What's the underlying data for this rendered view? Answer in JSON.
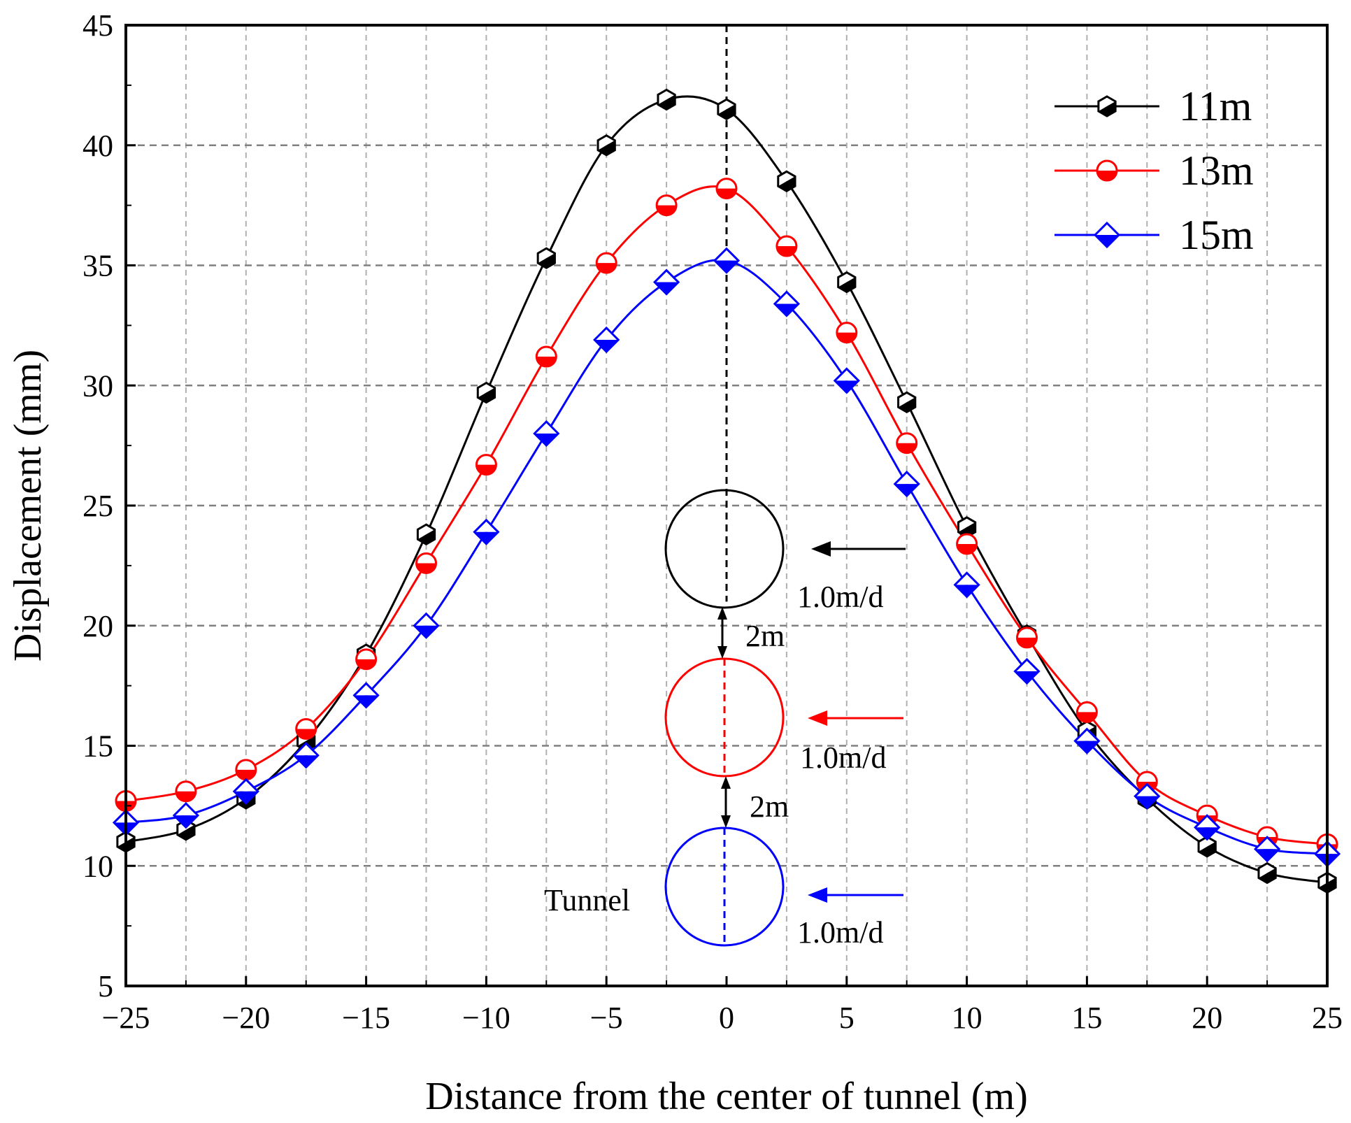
{
  "chart_data": {
    "type": "line",
    "title": "",
    "xlabel": "Distance from the center of tunnel (m)",
    "ylabel": "Displacement (mm)",
    "xlim": [
      -25,
      25
    ],
    "ylim": [
      5,
      45
    ],
    "xticks": [
      -25,
      -20,
      -15,
      -10,
      -5,
      0,
      5,
      10,
      15,
      20,
      25
    ],
    "xtick_labels": [
      "−25",
      "−20",
      "−15",
      "−10",
      "−5",
      "0",
      "5",
      "10",
      "15",
      "20",
      "25"
    ],
    "yticks": [
      5,
      10,
      15,
      20,
      25,
      30,
      35,
      40,
      45
    ],
    "ytick_labels": [
      "5",
      "10",
      "15",
      "20",
      "25",
      "30",
      "35",
      "40",
      "45"
    ],
    "grid": true,
    "legend_position": "top-right",
    "series": [
      {
        "name": "11m",
        "color": "#000000",
        "marker": "hexagon",
        "x": [
          -25,
          -22.5,
          -20,
          -17.5,
          -15,
          -12.5,
          -10,
          -7.5,
          -5,
          -2.5,
          0,
          2.5,
          5,
          7.5,
          10,
          12.5,
          15,
          17.5,
          20,
          22.5,
          25
        ],
        "y": [
          11.0,
          11.5,
          12.8,
          15.2,
          18.8,
          23.8,
          29.7,
          35.3,
          40.0,
          41.9,
          41.5,
          38.5,
          34.3,
          29.3,
          24.1,
          19.6,
          15.6,
          12.8,
          10.8,
          9.7,
          9.3
        ]
      },
      {
        "name": "13m",
        "color": "#ff0000",
        "marker": "circle",
        "x": [
          -25,
          -22.5,
          -20,
          -17.5,
          -15,
          -12.5,
          -10,
          -7.5,
          -5,
          -2.5,
          0,
          2.5,
          5,
          7.5,
          10,
          12.5,
          15,
          17.5,
          20,
          22.5,
          25
        ],
        "y": [
          12.7,
          13.1,
          14.0,
          15.7,
          18.6,
          22.6,
          26.7,
          31.2,
          35.1,
          37.5,
          38.2,
          35.8,
          32.2,
          27.6,
          23.4,
          19.5,
          16.4,
          13.5,
          12.1,
          11.2,
          10.9
        ]
      },
      {
        "name": "15m",
        "color": "#0000ff",
        "marker": "diamond",
        "x": [
          -25,
          -22.5,
          -20,
          -17.5,
          -15,
          -12.5,
          -10,
          -7.5,
          -5,
          -2.5,
          0,
          2.5,
          5,
          7.5,
          10,
          12.5,
          15,
          17.5,
          20,
          22.5,
          25
        ],
        "y": [
          11.8,
          12.1,
          13.1,
          14.6,
          17.1,
          20.0,
          23.9,
          28.0,
          31.9,
          34.3,
          35.2,
          33.4,
          30.2,
          25.9,
          21.7,
          18.1,
          15.2,
          12.9,
          11.6,
          10.7,
          10.5
        ]
      }
    ],
    "annotations": {
      "rate_label": "1.0m/d",
      "spacing_label": "2m",
      "tunnel_label": "Tunnel"
    }
  }
}
